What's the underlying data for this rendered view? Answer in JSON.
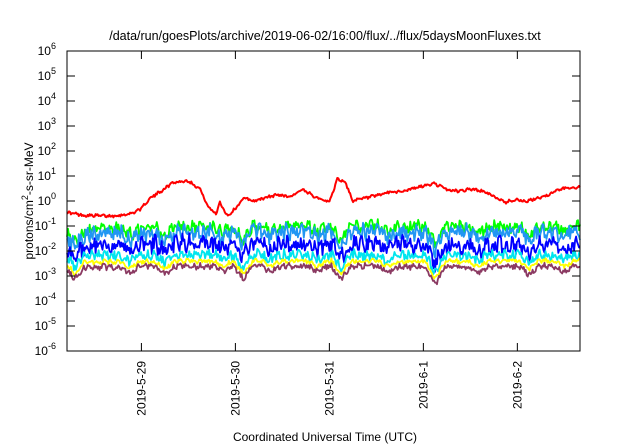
{
  "chart_data": {
    "type": "line",
    "title": "/data/run/goesPlots/archive/2019-06-02/16:00/flux/../flux/5daysMoonFluxes.txt",
    "xlabel": "Coordinated Universal Time (UTC)",
    "ylabel": "protons/cm²-s-sr-MeV",
    "ylabel_parts": {
      "prefix": "protons/cm",
      "sup": "2",
      "suffix": "-s-sr-MeV"
    },
    "y_scale": "log",
    "ylim": [
      1e-06,
      1000000.0
    ],
    "y_ticks": [
      {
        "base": "10",
        "exp": "-6",
        "value": 1e-06
      },
      {
        "base": "10",
        "exp": "-5",
        "value": 1e-05
      },
      {
        "base": "10",
        "exp": "-4",
        "value": 0.0001
      },
      {
        "base": "10",
        "exp": "-3",
        "value": 0.001
      },
      {
        "base": "10",
        "exp": "-2",
        "value": 0.01
      },
      {
        "base": "10",
        "exp": "-1",
        "value": 0.1
      },
      {
        "base": "10",
        "exp": "0",
        "value": 1
      },
      {
        "base": "10",
        "exp": "1",
        "value": 10
      },
      {
        "base": "10",
        "exp": "2",
        "value": 100
      },
      {
        "base": "10",
        "exp": "3",
        "value": 1000
      },
      {
        "base": "10",
        "exp": "4",
        "value": 10000
      },
      {
        "base": "10",
        "exp": "5",
        "value": 100000
      },
      {
        "base": "10",
        "exp": "6",
        "value": 1000000
      }
    ],
    "xlim": [
      "2019-05-28 05:00",
      "2019-06-02 16:00"
    ],
    "x_ticks": [
      {
        "label": "2019-5-29",
        "value": "2019-05-29 00:00"
      },
      {
        "label": "2019-5-30",
        "value": "2019-05-30 00:00"
      },
      {
        "label": "2019-5-31",
        "value": "2019-05-31 00:00"
      },
      {
        "label": "2019-6-1",
        "value": "2019-06-01 00:00"
      },
      {
        "label": "2019-6-2",
        "value": "2019-06-02 00:00"
      }
    ],
    "grid": false,
    "legend": "none",
    "series": [
      {
        "color": "#ff0000",
        "noise": 0.05,
        "points": [
          [
            "2019-05-28 05:00",
            0.35
          ],
          [
            "2019-05-28 09:00",
            0.27
          ],
          [
            "2019-05-28 16:00",
            0.25
          ],
          [
            "2019-05-28 21:00",
            0.3
          ],
          [
            "2019-05-29 00:00",
            0.5
          ],
          [
            "2019-05-29 02:00",
            1.2
          ],
          [
            "2019-05-29 05:00",
            2.5
          ],
          [
            "2019-05-29 08:00",
            5.5
          ],
          [
            "2019-05-29 12:00",
            6.5
          ],
          [
            "2019-05-29 15:00",
            3.0
          ],
          [
            "2019-05-29 17:00",
            0.6
          ],
          [
            "2019-05-29 19:00",
            0.3
          ],
          [
            "2019-05-29 20:00",
            0.9
          ],
          [
            "2019-05-29 22:00",
            0.25
          ],
          [
            "2019-05-30 00:00",
            0.5
          ],
          [
            "2019-05-30 02:00",
            1.3
          ],
          [
            "2019-05-30 05:00",
            1.0
          ],
          [
            "2019-05-30 08:00",
            1.4
          ],
          [
            "2019-05-30 11:00",
            1.8
          ],
          [
            "2019-05-30 14:00",
            1.5
          ],
          [
            "2019-05-30 17:00",
            2.8
          ],
          [
            "2019-05-30 20:00",
            1.6
          ],
          [
            "2019-05-31 00:00",
            0.9
          ],
          [
            "2019-05-31 02:00",
            7.5
          ],
          [
            "2019-05-31 04:00",
            6.0
          ],
          [
            "2019-05-31 06:00",
            1.0
          ],
          [
            "2019-05-31 09:00",
            1.3
          ],
          [
            "2019-05-31 12:00",
            1.6
          ],
          [
            "2019-05-31 15:00",
            2.2
          ],
          [
            "2019-05-31 19:00",
            2.5
          ],
          [
            "2019-06-01 00:00",
            4.0
          ],
          [
            "2019-06-01 03:00",
            5.0
          ],
          [
            "2019-06-01 06:00",
            2.8
          ],
          [
            "2019-06-01 09:00",
            2.5
          ],
          [
            "2019-06-01 12:00",
            3.0
          ],
          [
            "2019-06-01 15:00",
            2.5
          ],
          [
            "2019-06-01 18:00",
            1.5
          ],
          [
            "2019-06-01 21:00",
            0.9
          ],
          [
            "2019-06-02 00:00",
            1.2
          ],
          [
            "2019-06-02 02:00",
            0.9
          ],
          [
            "2019-06-02 05:00",
            1.3
          ],
          [
            "2019-06-02 08:00",
            1.8
          ],
          [
            "2019-06-02 11:00",
            3.0
          ],
          [
            "2019-06-02 14:00",
            3.5
          ],
          [
            "2019-06-02 16:00",
            3.5
          ]
        ]
      },
      {
        "color": "#00ff00",
        "noise": 0.22,
        "points": [
          [
            "2019-05-28 05:00",
            0.06
          ],
          [
            "2019-05-28 12:00",
            0.07
          ],
          [
            "2019-05-28 18:00",
            0.08
          ],
          [
            "2019-05-29 00:00",
            0.08
          ],
          [
            "2019-05-29 12:00",
            0.09
          ],
          [
            "2019-05-30 00:00",
            0.09
          ],
          [
            "2019-05-30 12:00",
            0.1
          ],
          [
            "2019-05-31 00:00",
            0.09
          ],
          [
            "2019-05-31 12:00",
            0.1
          ],
          [
            "2019-06-01 00:00",
            0.1
          ],
          [
            "2019-06-01 12:00",
            0.09
          ],
          [
            "2019-06-02 00:00",
            0.1
          ],
          [
            "2019-06-02 16:00",
            0.1
          ]
        ]
      },
      {
        "color": "#2196f3",
        "noise": 0.28,
        "points": [
          [
            "2019-05-28 05:00",
            0.045
          ],
          [
            "2019-05-28 18:00",
            0.05
          ],
          [
            "2019-05-29 06:00",
            0.055
          ],
          [
            "2019-05-30 00:00",
            0.06
          ],
          [
            "2019-05-30 18:00",
            0.06
          ],
          [
            "2019-05-31 12:00",
            0.06
          ],
          [
            "2019-06-01 06:00",
            0.055
          ],
          [
            "2019-06-02 00:00",
            0.06
          ],
          [
            "2019-06-02 16:00",
            0.06
          ]
        ]
      },
      {
        "color": "#0000ff",
        "noise": 0.3,
        "points": [
          [
            "2019-05-28 05:00",
            0.015
          ],
          [
            "2019-05-28 18:00",
            0.018
          ],
          [
            "2019-05-29 06:00",
            0.02
          ],
          [
            "2019-05-30 00:00",
            0.022
          ],
          [
            "2019-05-30 18:00",
            0.02
          ],
          [
            "2019-05-31 12:00",
            0.018
          ],
          [
            "2019-06-01 06:00",
            0.016
          ],
          [
            "2019-06-02 00:00",
            0.018
          ],
          [
            "2019-06-02 16:00",
            0.017
          ]
        ]
      },
      {
        "color": "#00e5ee",
        "noise": 0.18,
        "points": [
          [
            "2019-05-28 05:00",
            0.006
          ],
          [
            "2019-05-29 00:00",
            0.007
          ],
          [
            "2019-05-30 00:00",
            0.007
          ],
          [
            "2019-05-31 00:00",
            0.007
          ],
          [
            "2019-06-01 00:00",
            0.0065
          ],
          [
            "2019-06-02 00:00",
            0.007
          ],
          [
            "2019-06-02 16:00",
            0.007
          ]
        ]
      },
      {
        "color": "#ffff00",
        "noise": 0.08,
        "points": [
          [
            "2019-05-28 05:00",
            0.0035
          ],
          [
            "2019-05-29 00:00",
            0.0038
          ],
          [
            "2019-05-30 00:00",
            0.004
          ],
          [
            "2019-05-31 00:00",
            0.004
          ],
          [
            "2019-06-01 00:00",
            0.0038
          ],
          [
            "2019-06-02 00:00",
            0.004
          ],
          [
            "2019-06-02 16:00",
            0.004
          ]
        ]
      },
      {
        "color": "#8b3a62",
        "noise": 0.1,
        "points": [
          [
            "2019-05-28 05:00",
            0.0022
          ],
          [
            "2019-05-29 00:00",
            0.0024
          ],
          [
            "2019-05-30 00:00",
            0.0025
          ],
          [
            "2019-05-31 00:00",
            0.0025
          ],
          [
            "2019-06-01 00:00",
            0.0023
          ],
          [
            "2019-06-02 00:00",
            0.0025
          ],
          [
            "2019-06-02 16:00",
            0.0025
          ]
        ]
      }
    ],
    "dips": [
      {
        "time": "2019-05-28 07:00",
        "factor": 0.35
      },
      {
        "time": "2019-05-28 21:00",
        "factor": 0.55
      },
      {
        "time": "2019-05-29 06:00",
        "factor": 0.5
      },
      {
        "time": "2019-05-29 21:00",
        "factor": 0.6
      },
      {
        "time": "2019-05-30 02:00",
        "factor": 0.3
      },
      {
        "time": "2019-05-30 09:00",
        "factor": 0.6
      },
      {
        "time": "2019-05-30 21:00",
        "factor": 0.55
      },
      {
        "time": "2019-05-31 03:00",
        "factor": 0.3
      },
      {
        "time": "2019-05-31 15:00",
        "factor": 0.6
      },
      {
        "time": "2019-06-01 03:00",
        "factor": 0.2
      },
      {
        "time": "2019-06-01 14:00",
        "factor": 0.55
      },
      {
        "time": "2019-06-02 03:00",
        "factor": 0.45
      },
      {
        "time": "2019-06-02 12:00",
        "factor": 0.6
      }
    ]
  }
}
